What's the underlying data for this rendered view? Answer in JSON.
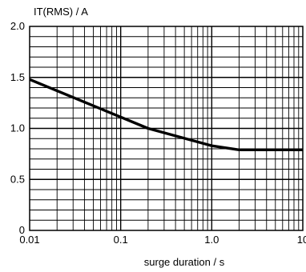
{
  "chart_data": {
    "type": "line",
    "ylabel": "IT(RMS) / A",
    "xlabel": "surge duration / s",
    "xscale": "log",
    "xlim": [
      0.01,
      10
    ],
    "ylim": [
      0,
      2.0
    ],
    "x_tick_labels": [
      "0.01",
      "0.1",
      "1.0",
      "10"
    ],
    "x_tick_values": [
      0.01,
      0.1,
      1,
      10
    ],
    "y_tick_labels": [
      "0",
      "0.5",
      "1.0",
      "1.5",
      "2.0"
    ],
    "y_tick_values": [
      0,
      0.5,
      1.0,
      1.5,
      2.0
    ],
    "grid": true,
    "legend": "none",
    "series": [
      {
        "x": [
          0.01,
          0.2,
          1.0,
          2.0,
          10
        ],
        "y": [
          1.48,
          1.0,
          0.83,
          0.79,
          0.79
        ]
      }
    ]
  }
}
